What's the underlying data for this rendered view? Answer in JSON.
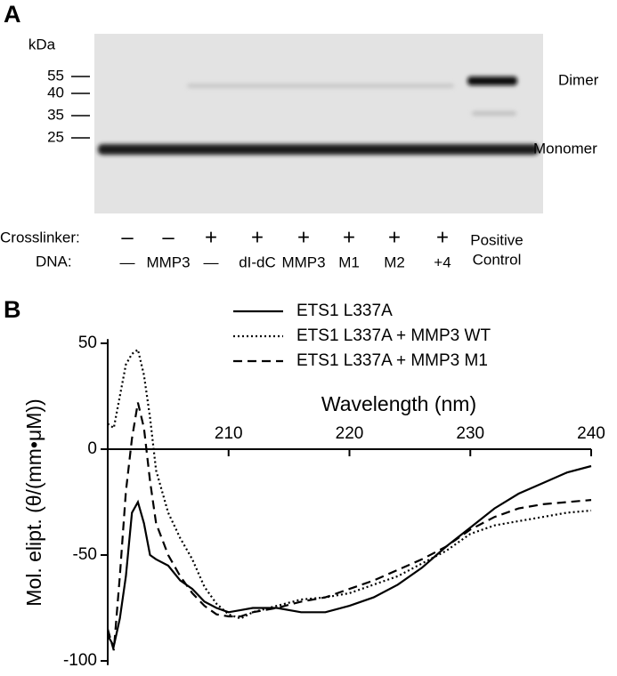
{
  "panel_a": {
    "label": "A",
    "unit": "kDa",
    "markers": [
      55,
      40,
      35,
      25
    ],
    "band_labels": [
      "Dimer",
      "Monomer"
    ],
    "row_labels": [
      "Crosslinker:",
      "DNA:"
    ],
    "crosslinker": [
      "–",
      "–",
      "+",
      "+",
      "+",
      "+",
      "+",
      "+"
    ],
    "dna": [
      "—",
      "MMP3",
      "—",
      "dI-dC",
      "MMP3",
      "M1",
      "M2",
      "+4"
    ],
    "positive_control": [
      "Positive",
      "Control"
    ]
  },
  "panel_b": {
    "label": "B"
  },
  "chart_data": {
    "type": "line",
    "xlabel": "Wavelength (nm)",
    "ylabel": "Mol. elipt. (θ/(mm•μM))",
    "x": [
      200,
      200.5,
      201,
      201.5,
      202,
      202.5,
      203,
      203.5,
      204,
      205,
      206,
      207,
      208,
      209,
      210,
      211,
      212,
      214,
      216,
      218,
      220,
      222,
      224,
      226,
      228,
      230,
      232,
      234,
      236,
      238,
      240
    ],
    "series": [
      {
        "name": "ETS1 L337A",
        "color": "#000000",
        "style": "solid",
        "values": [
          -88,
          -93,
          -80,
          -60,
          -30,
          -25,
          -35,
          -50,
          -52,
          -55,
          -62,
          -66,
          -72,
          -75,
          -77,
          -76,
          -75,
          -75,
          -77,
          -77,
          -74,
          -70,
          -64,
          -56,
          -46,
          -37,
          -28,
          -21,
          -16,
          -11,
          -8
        ]
      },
      {
        "name": "ETS1 L337A + MMP3 WT",
        "color": "#000000",
        "style": "dotted",
        "values": [
          12,
          10,
          25,
          40,
          45,
          47,
          35,
          15,
          -10,
          -30,
          -42,
          -52,
          -65,
          -73,
          -78,
          -80,
          -77,
          -74,
          -71,
          -70,
          -68,
          -64,
          -60,
          -54,
          -48,
          -40,
          -36,
          -34,
          -32,
          -30,
          -29
        ]
      },
      {
        "name": "ETS1 L337A + MMP3 M1",
        "color": "#000000",
        "style": "dashed",
        "values": [
          -85,
          -95,
          -60,
          -20,
          5,
          22,
          10,
          -15,
          -35,
          -50,
          -60,
          -68,
          -74,
          -78,
          -79,
          -79,
          -77,
          -75,
          -72,
          -70,
          -66,
          -62,
          -57,
          -52,
          -46,
          -38,
          -32,
          -28,
          -26,
          -25,
          -24
        ]
      }
    ],
    "xlim": [
      200,
      240
    ],
    "xticks": [
      210,
      220,
      230,
      240
    ],
    "ylim": [
      -102,
      52
    ],
    "yticks": [
      50,
      0,
      -50,
      -100
    ]
  }
}
